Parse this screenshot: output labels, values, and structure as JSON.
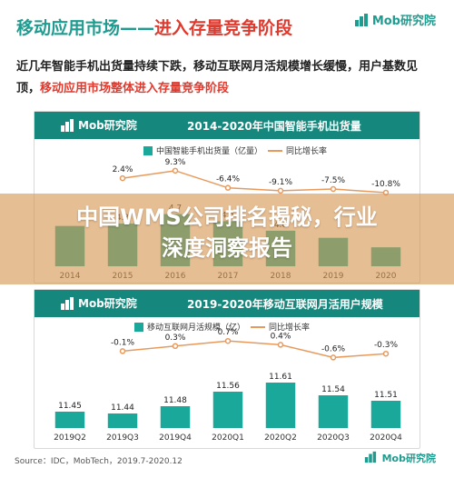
{
  "heading": {
    "part1": "移动应用市场",
    "dash": "——",
    "part2": "进入存量竞争阶段"
  },
  "brand": {
    "logo_text": "Mob研究院"
  },
  "description": {
    "normal": "近几年智能手机出货量持续下跌，移动互联网月活规模增长缓慢，用户基数见顶，",
    "highlight": "移动应用市场整体进入存量竞争阶段"
  },
  "overlay": {
    "line1": "中国WMS公司排名揭秘，行业",
    "line2": "深度洞察报告"
  },
  "source": "Source：IDC，MobTech，2019.7-2020.12",
  "colors": {
    "teal": "#16877c",
    "bar": "#1aa89a",
    "line": "#e89a5c",
    "accent": "#e0392d"
  },
  "chart_data": [
    {
      "type": "bar",
      "title": "2014-2020年中国智能手机出货量",
      "categories": [
        "2014",
        "2015",
        "2016",
        "2017",
        "2018",
        "2019",
        "2020"
      ],
      "series": [
        {
          "name": "中国智能手机出货量（亿量）",
          "values": [
            4.2,
            4.3,
            4.7,
            4.4,
            4.0,
            3.7,
            3.3
          ]
        },
        {
          "name": "同比增长率",
          "values": [
            "",
            "2.4%",
            "9.3%",
            "-6.4%",
            "-9.1%",
            "-7.5%",
            "-10.8%"
          ]
        }
      ],
      "value_labels": [
        "",
        "4.3",
        "4.7",
        "4.4",
        "4.0",
        "",
        ""
      ]
    },
    {
      "type": "bar",
      "title": "2019-2020年移动互联网月活用户规模",
      "categories": [
        "2019Q2",
        "2019Q3",
        "2019Q4",
        "2020Q1",
        "2020Q2",
        "2020Q3",
        "2020Q4"
      ],
      "series": [
        {
          "name": "移动互联网月活规模（亿）",
          "values": [
            11.45,
            11.44,
            11.48,
            11.56,
            11.61,
            11.54,
            11.51
          ]
        },
        {
          "name": "同比增长率",
          "values": [
            "",
            "-0.1%",
            "0.3%",
            "0.7%",
            "0.4%",
            "-0.6%",
            "-0.3%"
          ]
        }
      ],
      "value_labels": [
        "11.45",
        "11.44",
        "11.48",
        "11.56",
        "11.61",
        "11.54",
        "11.51"
      ]
    }
  ]
}
